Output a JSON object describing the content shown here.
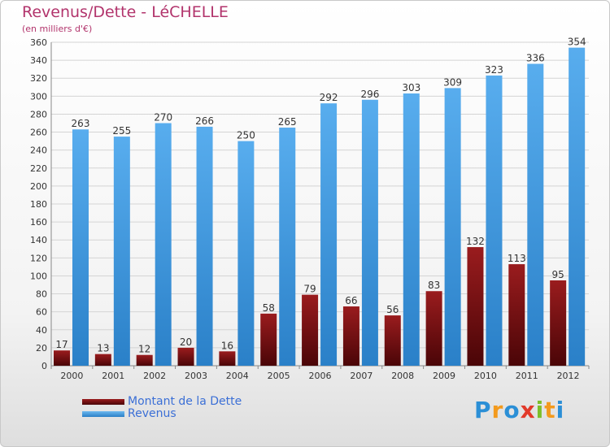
{
  "chart_data": {
    "type": "bar",
    "title": "Revenus/Dette - LéCHELLE",
    "subtitle": "(en milliers d'€)",
    "categories": [
      "2000",
      "2001",
      "2002",
      "2003",
      "2004",
      "2005",
      "2006",
      "2007",
      "2008",
      "2009",
      "2010",
      "2011",
      "2012"
    ],
    "series": [
      {
        "name": "Montant de la Dette",
        "color": "#7a1214",
        "values": [
          17,
          13,
          12,
          20,
          16,
          58,
          79,
          66,
          56,
          83,
          132,
          113,
          95
        ]
      },
      {
        "name": "Revenus",
        "color": "#3d9ae2",
        "values": [
          263,
          255,
          270,
          266,
          250,
          265,
          292,
          296,
          303,
          309,
          323,
          336,
          354
        ]
      }
    ],
    "ylim": [
      0,
      360
    ],
    "yticks": [
      0,
      20,
      40,
      60,
      80,
      100,
      120,
      140,
      160,
      180,
      200,
      220,
      240,
      260,
      280,
      300,
      320,
      340,
      360
    ],
    "grid": true,
    "legend_position": "bottom-left"
  },
  "logo": {
    "letters": [
      {
        "ch": "P",
        "color": "#2b8fd6"
      },
      {
        "ch": "r",
        "color": "#f39a1d"
      },
      {
        "ch": "o",
        "color": "#2b8fd6"
      },
      {
        "ch": "x",
        "color": "#e23a2a"
      },
      {
        "ch": "i",
        "color": "#7cbf2a"
      },
      {
        "ch": "t",
        "color": "#f39a1d"
      },
      {
        "ch": "i",
        "color": "#2b8fd6"
      }
    ]
  }
}
